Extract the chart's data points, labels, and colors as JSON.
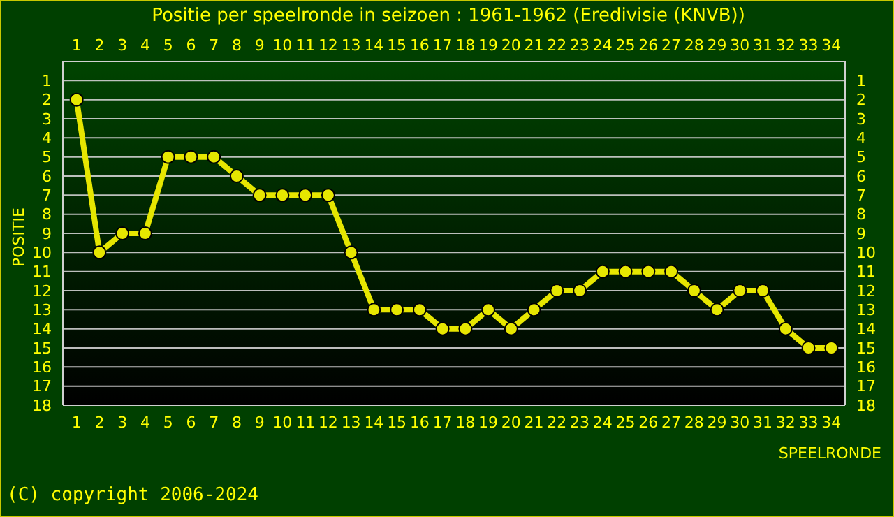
{
  "chart_data": {
    "type": "line",
    "title": "Positie per speelronde in seizoen : 1961-1962 (Eredivisie (KNVB))",
    "xlabel": "SPEELRONDE",
    "ylabel": "POSITIE",
    "annotations": [
      "(C) copyright 2006-2024"
    ],
    "x": [
      1,
      2,
      3,
      4,
      5,
      6,
      7,
      8,
      9,
      10,
      11,
      12,
      13,
      14,
      15,
      16,
      17,
      18,
      19,
      20,
      21,
      22,
      23,
      24,
      25,
      26,
      27,
      28,
      29,
      30,
      31,
      32,
      33,
      34
    ],
    "series": [
      {
        "color": "#e6e600",
        "values": [
          2,
          10,
          9,
          9,
          5,
          5,
          5,
          6,
          7,
          7,
          7,
          7,
          10,
          13,
          13,
          13,
          14,
          14,
          13,
          14,
          13,
          12,
          12,
          11,
          11,
          11,
          11,
          12,
          13,
          12,
          12,
          14,
          15,
          15
        ]
      }
    ],
    "xlim": [
      0.4,
      34.6
    ],
    "xticks": [
      1,
      2,
      3,
      4,
      5,
      6,
      7,
      8,
      9,
      10,
      11,
      12,
      13,
      14,
      15,
      16,
      17,
      18,
      19,
      20,
      21,
      22,
      23,
      24,
      25,
      26,
      27,
      28,
      29,
      30,
      31,
      32,
      33,
      34
    ],
    "x2lim": [
      0.4,
      34.6
    ],
    "x2ticks": [
      1,
      2,
      3,
      4,
      5,
      6,
      7,
      8,
      9,
      10,
      11,
      12,
      13,
      14,
      15,
      16,
      17,
      18,
      19,
      20,
      21,
      22,
      23,
      24,
      25,
      26,
      27,
      28,
      29,
      30,
      31,
      32,
      33,
      34
    ],
    "ylim": [
      18,
      0
    ],
    "yticks": [
      1,
      2,
      3,
      4,
      5,
      6,
      7,
      8,
      9,
      10,
      11,
      12,
      13,
      14,
      15,
      16,
      17,
      18
    ],
    "y2lim": [
      18,
      0
    ],
    "y2ticks": [
      1,
      2,
      3,
      4,
      5,
      6,
      7,
      8,
      9,
      10,
      11,
      12,
      13,
      14,
      15,
      16,
      17,
      18
    ],
    "grid": "y",
    "marker": "circle",
    "line_style": "solid"
  }
}
